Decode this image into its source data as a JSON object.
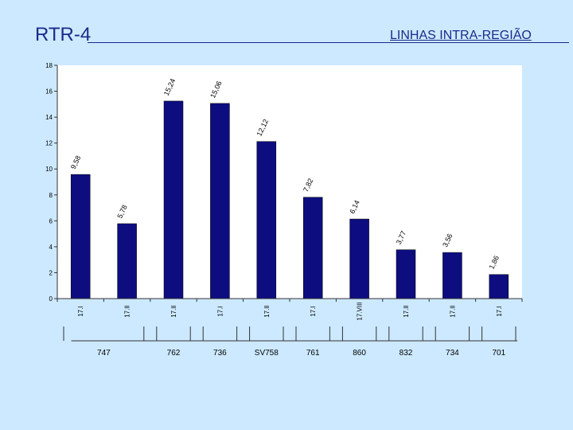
{
  "header": {
    "title": "RTR-4",
    "subtitle": "LINHAS INTRA-REGIÃO"
  },
  "colors": {
    "background": "#cce9ff",
    "bar": "#0d0d80",
    "text": "#1a2a8a"
  },
  "chart_data": {
    "type": "bar",
    "categories": [
      "17.I",
      "17.II",
      "17.II",
      "17.I",
      "17.II",
      "17.I",
      "17.VIII",
      "17.II",
      "17.II",
      "17.I"
    ],
    "values": [
      9.58,
      5.78,
      15.24,
      15.06,
      12.12,
      7.82,
      6.14,
      3.77,
      3.56,
      1.86
    ],
    "value_labels": [
      "9,58",
      "5,78",
      "15,24",
      "15,06",
      "12,12",
      "7,82",
      "6,14",
      "3,77",
      "3,56",
      "1,86"
    ],
    "ylim": [
      0,
      18
    ],
    "yticks": [
      0,
      2,
      4,
      6,
      8,
      10,
      12,
      14,
      16,
      18
    ],
    "grid": false,
    "group_labels": [
      "747",
      "762",
      "736",
      "SV758",
      "761",
      "860",
      "832",
      "734",
      "701"
    ]
  }
}
